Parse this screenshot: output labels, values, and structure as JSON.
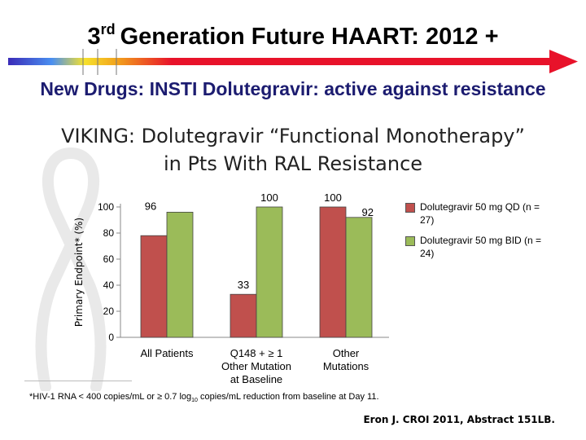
{
  "slide": {
    "title_prefix": "3",
    "title_suffix": "rd",
    "title_main": "Generation Future HAART: 2012 +",
    "subtitle": "New Drugs: INSTI Dolutegravir: active against resistance",
    "footnote_a": "*HIV-1 RNA < 400 copies/mL or ≥ 0.7 log",
    "footnote_sub": "10",
    "footnote_b": " copies/mL reduction from baseline at Day 11.",
    "citation": "Eron J. CROI 2011, Abstract 151LB."
  },
  "colors": {
    "series1": "#c0504d",
    "series2": "#9bbb59",
    "subtitle": "#1c1c70",
    "timeline_arrow": "#e8122a"
  },
  "chart_data": {
    "type": "bar",
    "title_line1": "VIKING: Dolutegravir “Functional Monotherapy”",
    "title_line2": "in Pts With RAL Resistance",
    "ylabel": "Primary Endpoint* (%)",
    "xlabel": "",
    "ylim": [
      0,
      100
    ],
    "yticks": [
      0,
      20,
      40,
      60,
      80,
      100
    ],
    "grid": false,
    "legend_position": "right",
    "categories": [
      [
        "All Patients"
      ],
      [
        "Q148 + ≥ 1",
        "Other Mutation",
        "at Baseline"
      ],
      [
        "Other",
        "Mutations"
      ]
    ],
    "series": [
      {
        "name": "Dolutegravir 50 mg QD (n = 27)",
        "values": [
          78,
          33,
          100
        ],
        "color": "#c0504d"
      },
      {
        "name": "Dolutegravir 50 mg BID (n = 24)",
        "values": [
          96,
          100,
          92
        ],
        "color": "#9bbb59"
      }
    ]
  }
}
